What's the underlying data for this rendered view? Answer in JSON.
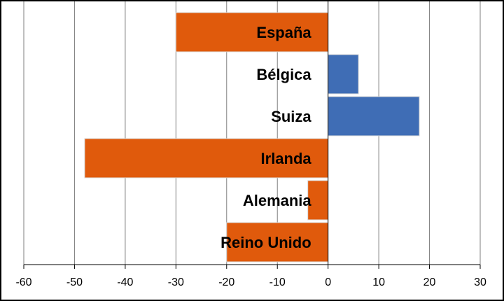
{
  "chart_data": {
    "type": "bar",
    "orientation": "horizontal",
    "categories": [
      "España",
      "Bélgica",
      "Suiza",
      "Irlanda",
      "Alemania",
      "Reino Unido"
    ],
    "values": [
      -30,
      6,
      18,
      -48,
      -4,
      -20
    ],
    "xlim": [
      -60,
      30
    ],
    "xticks": [
      -60,
      -50,
      -40,
      -30,
      -20,
      -10,
      0,
      10,
      20,
      30
    ],
    "grid": "vertical",
    "legend": "none",
    "colors": {
      "negative": "#E05A0C",
      "positive": "#3F6DB5",
      "grid": "#7F7F7F",
      "axis": "#000000"
    }
  }
}
